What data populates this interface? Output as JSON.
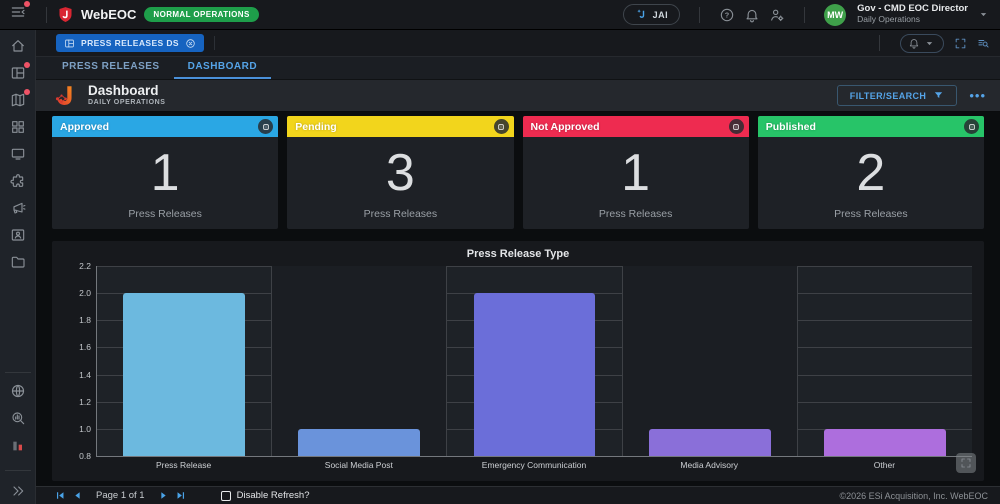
{
  "topbar": {
    "brand": "WebEOC",
    "status_badge": "NORMAL OPERATIONS",
    "jai_label": "JAI",
    "user_name": "Gov - CMD EOC Director",
    "user_role": "Daily Operations",
    "avatar_initials": "MW",
    "avatar_color": "#3fa04a"
  },
  "workspace": {
    "chip_label": "PRESS RELEASES DS",
    "tabs": [
      {
        "label": "PRESS RELEASES",
        "active": false
      },
      {
        "label": "DASHBOARD",
        "active": true
      }
    ]
  },
  "header": {
    "title": "Dashboard",
    "subtitle": "DAILY OPERATIONS",
    "filter_button": "FILTER/SEARCH"
  },
  "sidebar": {
    "items": [
      {
        "icon": "home",
        "badge": false
      },
      {
        "icon": "boards",
        "badge": true
      },
      {
        "icon": "maps",
        "badge": true
      },
      {
        "icon": "apps",
        "badge": false
      },
      {
        "icon": "monitor",
        "badge": false
      },
      {
        "icon": "plugin",
        "badge": false
      },
      {
        "icon": "megaphone",
        "badge": false
      },
      {
        "icon": "contacts",
        "badge": false
      },
      {
        "icon": "folder",
        "badge": false
      }
    ],
    "tools": [
      {
        "icon": "globe"
      },
      {
        "icon": "chart-search"
      },
      {
        "icon": "bar-chart"
      }
    ]
  },
  "cards": [
    {
      "label": "Approved",
      "value": "1",
      "unit": "Press Releases",
      "color": "#2aa7e4"
    },
    {
      "label": "Pending",
      "value": "3",
      "unit": "Press Releases",
      "color": "#f2d51c"
    },
    {
      "label": "Not Approved",
      "value": "1",
      "unit": "Press Releases",
      "color": "#ee2b50"
    },
    {
      "label": "Published",
      "value": "2",
      "unit": "Press Releases",
      "color": "#27c468"
    }
  ],
  "chart_data": {
    "type": "bar",
    "title": "Press Release Type",
    "categories": [
      "Press Release",
      "Social Media Post",
      "Emergency Communication",
      "Media Advisory",
      "Other"
    ],
    "values": [
      2,
      1,
      2,
      1,
      1
    ],
    "bar_colors": [
      "#6cb9df",
      "#6a93db",
      "#6b6ed9",
      "#8a6fd9",
      "#ad6edd"
    ],
    "xlabel": "",
    "ylabel": "",
    "ylim": [
      0.8,
      2.2
    ],
    "yticks": [
      0.8,
      1.0,
      1.2,
      1.4,
      1.6,
      1.8,
      2.0,
      2.2
    ],
    "grid": true,
    "legend": false
  },
  "bottombar": {
    "pagination": "Page 1 of 1",
    "refresh_label": "Disable Refresh?",
    "copyright": "©2026 ESi Acquisition, Inc. WebEOC"
  }
}
